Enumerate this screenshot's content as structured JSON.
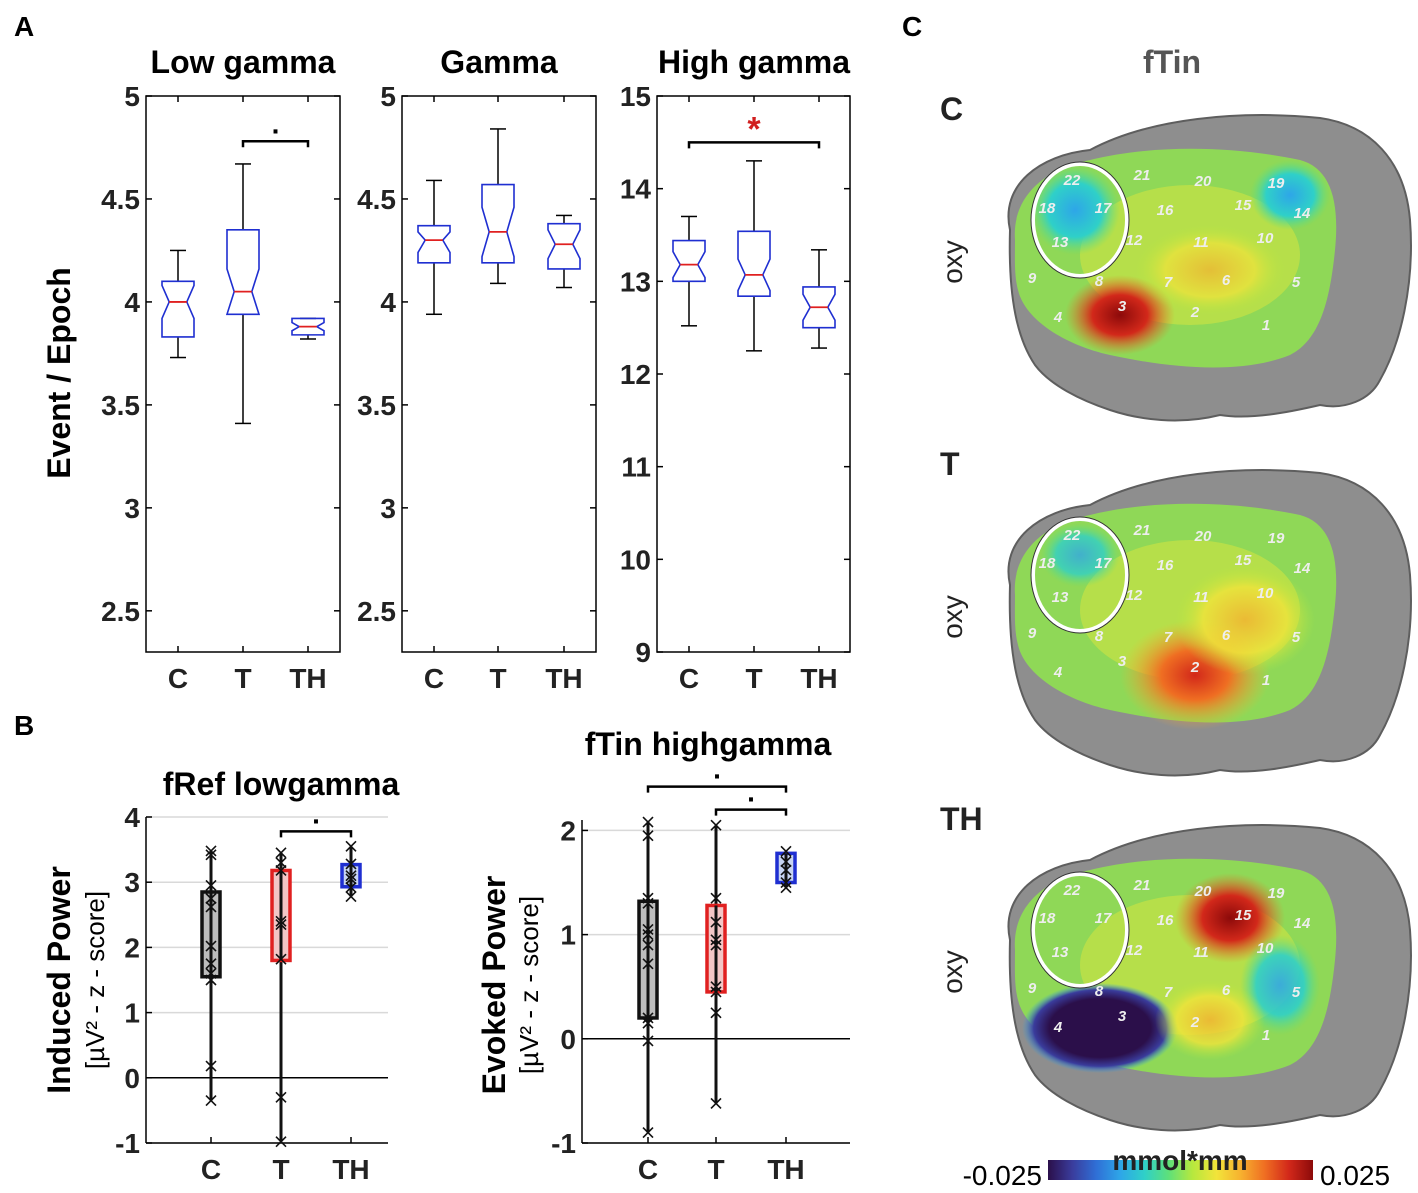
{
  "panel_labels": {
    "a": "A",
    "b": "B",
    "c": "C"
  },
  "panel_a_ylabel": "Event / Epoch",
  "panel_b_left_ylabel": "Induced Power",
  "panel_b_left_ylabel_unit": "[µV² - z - score]",
  "panel_b_right_ylabel": "Evoked Power",
  "panel_b_right_ylabel_unit": "[µV² - z - score]",
  "panel_c": {
    "title": "fTin",
    "rows": [
      {
        "label": "C",
        "sublabel": "oxy"
      },
      {
        "label": "T",
        "sublabel": "oxy"
      },
      {
        "label": "TH",
        "sublabel": "oxy"
      }
    ],
    "channels": [
      "1",
      "2",
      "3",
      "4",
      "5",
      "6",
      "7",
      "8",
      "9",
      "10",
      "11",
      "12",
      "13",
      "14",
      "15",
      "16",
      "17",
      "18",
      "19",
      "20",
      "21",
      "22"
    ],
    "colorbar": {
      "label": "mmol*mm",
      "min_label": "-0.025",
      "max_label": "0.025",
      "colors": [
        "#2b0f4a",
        "#3a3c9c",
        "#2f6fd6",
        "#2ea6e8",
        "#2fd0c8",
        "#5ee07a",
        "#b6e83e",
        "#f2e43a",
        "#f7b12f",
        "#ef6e22",
        "#d2281a",
        "#8c0a0a"
      ]
    },
    "C": {
      "sig": "."
    }
  },
  "chart_data": [
    {
      "id": "low_gamma",
      "type": "boxplot",
      "title": "Low gamma",
      "categories": [
        "C",
        "T",
        "TH"
      ],
      "ylim": [
        2.3,
        5
      ],
      "yticks": [
        2.5,
        3,
        3.5,
        4,
        4.5,
        5
      ],
      "ytick_labels": [
        "2.5",
        "3",
        "3.5",
        "4",
        "4.5",
        "5"
      ],
      "ylabel": "Event / Epoch",
      "boxes": [
        {
          "min": 3.73,
          "q1": 3.83,
          "median": 4.0,
          "q3": 4.1,
          "max": 4.25,
          "notch_low": 3.92,
          "notch_high": 4.08
        },
        {
          "min": 3.41,
          "q1": 3.94,
          "median": 4.05,
          "q3": 4.35,
          "max": 4.67,
          "notch_low": 3.94,
          "notch_high": 4.16
        },
        {
          "min": 3.82,
          "q1": 3.84,
          "median": 3.88,
          "q3": 3.92,
          "max": 3.92,
          "notch_low": 3.86,
          "notch_high": 3.9
        }
      ],
      "significance": [
        {
          "from": 1,
          "to": 2,
          "symbol": ".",
          "y": 4.78,
          "color": "#000000"
        }
      ]
    },
    {
      "id": "gamma",
      "type": "boxplot",
      "title": "Gamma",
      "categories": [
        "C",
        "T",
        "TH"
      ],
      "ylim": [
        2.3,
        5
      ],
      "yticks": [
        2.5,
        3,
        3.5,
        4,
        4.5,
        5
      ],
      "ytick_labels": [
        "2.5",
        "3",
        "3.5",
        "4",
        "4.5",
        "5"
      ],
      "boxes": [
        {
          "min": 3.94,
          "q1": 4.19,
          "median": 4.3,
          "q3": 4.37,
          "max": 4.59,
          "notch_low": 4.24,
          "notch_high": 4.34
        },
        {
          "min": 4.09,
          "q1": 4.19,
          "median": 4.34,
          "q3": 4.57,
          "max": 4.84,
          "notch_low": 4.22,
          "notch_high": 4.46
        },
        {
          "min": 4.07,
          "q1": 4.16,
          "median": 4.28,
          "q3": 4.38,
          "max": 4.42,
          "notch_low": 4.21,
          "notch_high": 4.35
        }
      ],
      "significance": []
    },
    {
      "id": "high_gamma",
      "type": "boxplot",
      "title": "High gamma",
      "categories": [
        "C",
        "T",
        "TH"
      ],
      "ylim": [
        9,
        15
      ],
      "yticks": [
        9,
        10,
        11,
        12,
        13,
        14,
        15
      ],
      "ytick_labels": [
        "9",
        "10",
        "11",
        "12",
        "13",
        "14",
        "15"
      ],
      "boxes": [
        {
          "min": 12.52,
          "q1": 13.0,
          "median": 13.18,
          "q3": 13.44,
          "max": 13.7,
          "notch_low": 13.04,
          "notch_high": 13.32
        },
        {
          "min": 12.25,
          "q1": 12.84,
          "median": 13.07,
          "q3": 13.54,
          "max": 14.3,
          "notch_low": 12.9,
          "notch_high": 13.24
        },
        {
          "min": 12.28,
          "q1": 12.5,
          "median": 12.72,
          "q3": 12.94,
          "max": 13.34,
          "notch_low": 12.58,
          "notch_high": 12.86
        }
      ],
      "significance": [
        {
          "from": 0,
          "to": 2,
          "symbol": "*",
          "y": 14.5,
          "color": "#d11f1f"
        }
      ]
    },
    {
      "id": "fref_lowgamma",
      "type": "bar_scatter",
      "title": "fRef lowgamma",
      "categories": [
        "C",
        "T",
        "TH"
      ],
      "ylim": [
        -1,
        4
      ],
      "yticks": [
        -1,
        0,
        1,
        2,
        3,
        4
      ],
      "ytick_labels": [
        "-1",
        "0",
        "1",
        "2",
        "3",
        "4"
      ],
      "ylabel": "Induced Power",
      "boxes": [
        {
          "q1": 1.55,
          "q3": 2.85,
          "mean": 2.02,
          "points": [
            3.48,
            3.42,
            2.95,
            2.75,
            2.62,
            2.02,
            1.75,
            1.6,
            1.5,
            0.18,
            -0.35
          ]
        },
        {
          "q1": 1.8,
          "q3": 3.18,
          "mean": 2.38,
          "points": [
            3.45,
            3.3,
            3.18,
            2.4,
            2.35,
            1.82,
            -0.3,
            -0.98
          ]
        },
        {
          "q1": 2.93,
          "q3": 3.27,
          "mean": 3.1,
          "points": [
            3.55,
            3.28,
            3.1,
            3.05,
            2.92,
            2.78
          ]
        }
      ],
      "significance": [
        {
          "from": 1,
          "to": 2,
          "symbol": ".",
          "y": 3.78,
          "color": "#000000"
        }
      ]
    },
    {
      "id": "ftin_highgamma",
      "type": "bar_scatter",
      "title": "fTin highgamma",
      "categories": [
        "C",
        "T",
        "TH"
      ],
      "ylim": [
        -1,
        2.1
      ],
      "yticks": [
        -1,
        0,
        1,
        2
      ],
      "ytick_labels": [
        "-1",
        "0",
        "1",
        "2"
      ],
      "ylabel": "Evoked Power",
      "boxes": [
        {
          "q1": 0.2,
          "q3": 1.32,
          "mean": 0.85,
          "points": [
            2.08,
            1.95,
            1.35,
            1.3,
            1.05,
            1.0,
            0.9,
            0.72,
            0.2,
            0.15,
            -0.02,
            -0.9
          ]
        },
        {
          "q1": 0.45,
          "q3": 1.28,
          "mean": 0.9,
          "points": [
            2.05,
            1.35,
            1.12,
            0.95,
            0.9,
            0.5,
            0.45,
            0.25,
            -0.62
          ]
        },
        {
          "q1": 1.5,
          "q3": 1.78,
          "mean": 1.62,
          "points": [
            1.8,
            1.7,
            1.62,
            1.5,
            1.45
          ]
        }
      ],
      "significance": [
        {
          "from": 0,
          "to": 2,
          "symbol": ".",
          "y": 2.42,
          "color": "#000000"
        },
        {
          "from": 1,
          "to": 2,
          "symbol": ".",
          "y": 2.2,
          "color": "#000000"
        }
      ]
    }
  ]
}
